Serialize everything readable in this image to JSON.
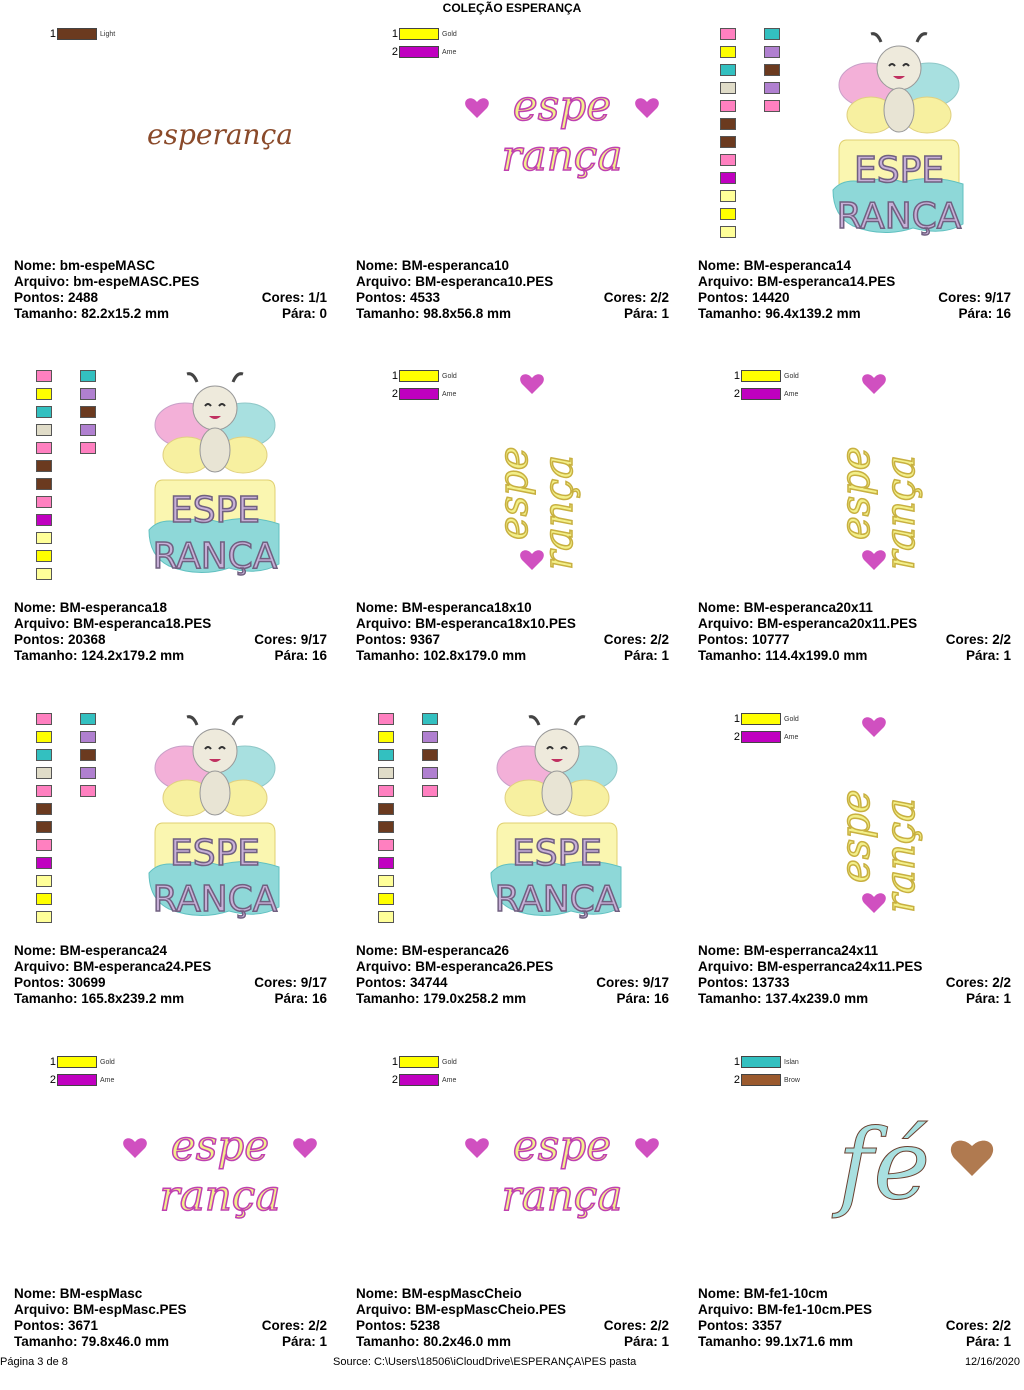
{
  "title": "COLEÇÃO ESPERANÇA",
  "colors": {
    "brown": "#6b3a1f",
    "gold": "#ffff00",
    "ame": "#c000c0",
    "pink": "#ff80c0",
    "cyan": "#33c0c0",
    "beige": "#e0dcc8",
    "purple": "#b080d0",
    "pale": "#ffff99",
    "teal": "#33c0c0",
    "lightbrown": "#9b5a2e"
  },
  "items": [
    {
      "nome": "Nome: bm-espeMASC",
      "arquivo": "Arquivo: bm-espeMASC.PES",
      "pontos": "Pontos: 2488",
      "cores": "Cores: 1/1",
      "tamanho": "Tamanho: 82.2x15.2 mm",
      "para": "Pára: 0",
      "swatches": [
        {
          "n": "1",
          "name": "Light",
          "color": "#6b3a1f"
        }
      ],
      "art_text": "esperança"
    },
    {
      "nome": "Nome: BM-esperanca10",
      "arquivo": "Arquivo: BM-esperanca10.PES",
      "pontos": "Pontos: 4533",
      "cores": "Cores: 2/2",
      "tamanho": "Tamanho: 98.8x56.8 mm",
      "para": "Pára: 1",
      "swatches": [
        {
          "n": "1",
          "name": "Gold",
          "color": "#ffff00"
        },
        {
          "n": "2",
          "name": "Ame",
          "color": "#c000c0"
        }
      ],
      "art_text": "espe rança"
    },
    {
      "nome": "Nome: BM-esperanca14",
      "arquivo": "Arquivo: BM-esperanca14.PES",
      "pontos": "Pontos: 14420",
      "cores": "Cores: 9/17",
      "tamanho": "Tamanho: 96.4x139.2 mm",
      "para": "Pára: 16",
      "art_text": "ESPE RANÇA"
    },
    {
      "nome": "Nome: BM-esperanca18",
      "arquivo": "Arquivo: BM-esperanca18.PES",
      "pontos": "Pontos: 20368",
      "cores": "Cores: 9/17",
      "tamanho": "Tamanho: 124.2x179.2 mm",
      "para": "Pára: 16",
      "art_text": "ESPE RANÇA"
    },
    {
      "nome": "Nome: BM-esperanca18x10",
      "arquivo": "Arquivo: BM-esperanca18x10.PES",
      "pontos": "Pontos: 9367",
      "cores": "Cores: 2/2",
      "tamanho": "Tamanho: 102.8x179.0 mm",
      "para": "Pára: 1",
      "swatches": [
        {
          "n": "1",
          "name": "Gold",
          "color": "#ffff00"
        },
        {
          "n": "2",
          "name": "Ame",
          "color": "#c000c0"
        }
      ],
      "art_text": "espe rança"
    },
    {
      "nome": "Nome: BM-esperanca20x11",
      "arquivo": "Arquivo: BM-esperanca20x11.PES",
      "pontos": "Pontos: 10777",
      "cores": "Cores: 2/2",
      "tamanho": "Tamanho: 114.4x199.0 mm",
      "para": "Pára: 1",
      "swatches": [
        {
          "n": "1",
          "name": "Gold",
          "color": "#ffff00"
        },
        {
          "n": "2",
          "name": "Ame",
          "color": "#c000c0"
        }
      ],
      "art_text": "espe rança"
    },
    {
      "nome": "Nome: BM-esperanca24",
      "arquivo": "Arquivo: BM-esperanca24.PES",
      "pontos": "Pontos: 30699",
      "cores": "Cores: 9/17",
      "tamanho": "Tamanho: 165.8x239.2 mm",
      "para": "Pára: 16",
      "art_text": "ESPE RANÇA"
    },
    {
      "nome": "Nome: BM-esperanca26",
      "arquivo": "Arquivo: BM-esperanca26.PES",
      "pontos": "Pontos: 34744",
      "cores": "Cores: 9/17",
      "tamanho": "Tamanho: 179.0x258.2 mm",
      "para": "Pára: 16",
      "art_text": "ESPE RANÇA"
    },
    {
      "nome": "Nome: BM-esperranca24x11",
      "arquivo": "Arquivo: BM-esperranca24x11.PES",
      "pontos": "Pontos: 13733",
      "cores": "Cores: 2/2",
      "tamanho": "Tamanho: 137.4x239.0 mm",
      "para": "Pára: 1",
      "swatches": [
        {
          "n": "1",
          "name": "Gold",
          "color": "#ffff00"
        },
        {
          "n": "2",
          "name": "Ame",
          "color": "#c000c0"
        }
      ],
      "art_text": "espe rança"
    },
    {
      "nome": "Nome: BM-espMasc",
      "arquivo": "Arquivo: BM-espMasc.PES",
      "pontos": "Pontos: 3671",
      "cores": "Cores: 2/2",
      "tamanho": "Tamanho: 79.8x46.0 mm",
      "para": "Pára: 1",
      "swatches": [
        {
          "n": "1",
          "name": "Gold",
          "color": "#ffff00"
        },
        {
          "n": "2",
          "name": "Ame",
          "color": "#c000c0"
        }
      ],
      "art_text": "espe rança"
    },
    {
      "nome": "Nome: BM-espMascCheio",
      "arquivo": "Arquivo: BM-espMascCheio.PES",
      "pontos": "Pontos: 5238",
      "cores": "Cores: 2/2",
      "tamanho": "Tamanho: 80.2x46.0 mm",
      "para": "Pára: 1",
      "swatches": [
        {
          "n": "1",
          "name": "Gold",
          "color": "#ffff00"
        },
        {
          "n": "2",
          "name": "Ame",
          "color": "#c000c0"
        }
      ],
      "art_text": "espe rança"
    },
    {
      "nome": "Nome: BM-fe1-10cm",
      "arquivo": "Arquivo: BM-fe1-10cm.PES",
      "pontos": "Pontos: 3357",
      "cores": "Cores: 2/2",
      "tamanho": "Tamanho: 99.1x71.6 mm",
      "para": "Pára: 1",
      "swatches": [
        {
          "n": "1",
          "name": "Islan",
          "color": "#33c0c0"
        },
        {
          "n": "2",
          "name": "Brow",
          "color": "#9b5a2e"
        }
      ],
      "art_text": "fé"
    }
  ],
  "multi_swatch_colors_left": [
    "#ff80c0",
    "#ffff00",
    "#33c0c0",
    "#e0dcc8",
    "#ff80c0",
    "#6b3a1f",
    "#6b3a1f",
    "#ff80c0",
    "#c000c0",
    "#ffff99",
    "#ffff00",
    "#ffff99"
  ],
  "multi_swatch_colors_right": [
    "#33c0c0",
    "#b080d0",
    "#6b3a1f",
    "#b080d0",
    "#ff80c0"
  ],
  "footer": {
    "page": "Página 3 de 8",
    "source": "Source: C:\\Users\\18506\\iCloudDrive\\ESPERANÇA\\PES pasta",
    "date": "12/16/2020"
  }
}
